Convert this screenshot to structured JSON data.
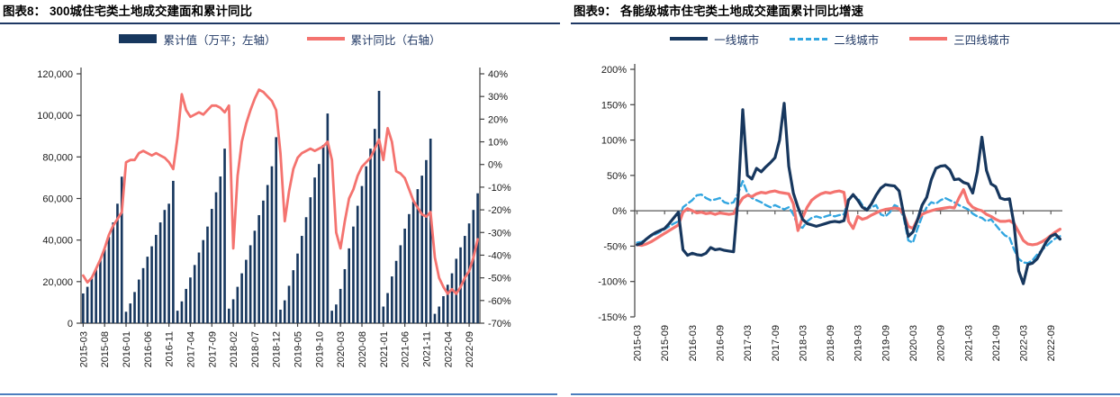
{
  "page": {
    "background": "#FFFFFF"
  },
  "colors": {
    "navy": "#17375E",
    "coral": "#F4736F",
    "skyblue": "#33A6E0",
    "title_rule": "#1F3864",
    "bottom_rule": "#4D7EBE",
    "axis": "#404040",
    "zero_line": "#595959",
    "text": "#1a1a1a"
  },
  "panels": [
    {
      "id": "chart8",
      "header": {
        "prefix": "图表8：",
        "title": "300城住宅类土地成交建面和累计同比"
      },
      "legend": [
        {
          "key": "cumulative-value",
          "label": "累计值（万平；左轴）",
          "marker": "bar",
          "color": "#17375E"
        },
        {
          "key": "cumulative-yoy",
          "label": "累计同比（右轴）",
          "marker": "line",
          "color": "#F4736F"
        }
      ],
      "chart_data": {
        "type": "bar",
        "subtype": "combo-bar-line",
        "frequency": "monthly",
        "x_start": "2015-03",
        "x_end": "2022-11",
        "x_tick_every": 5,
        "x_tick_labels": [
          "2015-03",
          "2015-08",
          "2016-01",
          "2016-06",
          "2016-11",
          "2017-04",
          "2017-09",
          "2018-02",
          "2018-07",
          "2018-12",
          "2019-05",
          "2019-10",
          "2020-03",
          "2020-08",
          "2021-01",
          "2021-06",
          "2021-11",
          "2022-04",
          "2022-09"
        ],
        "left_axis": {
          "min": 0,
          "max": 120000,
          "tick_step": 20000,
          "tick_labels": [
            "120,000",
            "100,000",
            "80,000",
            "60,000",
            "40,000",
            "20,000",
            "0"
          ]
        },
        "right_axis": {
          "min": -70,
          "max": 40,
          "tick_step": 10,
          "tick_labels": [
            "40%",
            "30%",
            "20%",
            "10%",
            "0%",
            "-10%",
            "-20%",
            "-30%",
            "-40%",
            "-50%",
            "-60%",
            "-70%"
          ]
        },
        "grid": false,
        "legend_position": "top",
        "series": [
          {
            "name": "累计值（万平；左轴）",
            "type": "bar",
            "axis": "left",
            "color": "#17375E",
            "values": [
              14300,
              17500,
              21500,
              26000,
              30500,
              35500,
              41500,
              48500,
              57500,
              70500,
              5500,
              9500,
              15000,
              21000,
              26500,
              32000,
              37000,
              42500,
              48500,
              54500,
              57500,
              68500,
              6000,
              10500,
              16500,
              22000,
              28000,
              34000,
              40000,
              46500,
              55000,
              63000,
              70600,
              84000,
              7000,
              11500,
              17500,
              24000,
              30500,
              37500,
              44500,
              52000,
              59000,
              66500,
              75500,
              89500,
              6500,
              11000,
              18000,
              25500,
              33500,
              42000,
              51000,
              60600,
              70100,
              76600,
              85800,
              100900,
              6000,
              9000,
              16500,
              26000,
              36000,
              46500,
              56500,
              66000,
              75500,
              84000,
              93500,
              111800,
              8000,
              14500,
              22500,
              30000,
              37500,
              45500,
              52500,
              58500,
              64500,
              71000,
              78500,
              88800,
              4500,
              8000,
              13000,
              18500,
              24000,
              31000,
              36500,
              42000,
              48000,
              54500,
              62500
            ]
          },
          {
            "name": "累计同比（右轴）",
            "type": "line",
            "axis": "right",
            "color": "#F4736F",
            "values": [
              -49,
              -52,
              -50,
              -46,
              -42,
              -37,
              -31,
              -27,
              -24,
              -21,
              1,
              2,
              2,
              5,
              6,
              5,
              4,
              5,
              4,
              3,
              1,
              -2,
              12,
              31,
              24,
              21,
              22,
              23,
              22,
              24,
              26,
              26,
              25,
              23,
              26,
              -37,
              -5,
              10,
              18,
              24,
              29,
              33,
              32,
              30,
              28,
              24,
              5,
              -25,
              -12,
              -2,
              3,
              5,
              6,
              7,
              6,
              7,
              8,
              10,
              2,
              -30,
              -37,
              -25,
              -15,
              -11,
              -5,
              -1,
              1,
              3,
              7,
              11,
              2,
              16,
              10,
              -3,
              -4,
              -6,
              -11,
              -16,
              -19,
              -22,
              -23,
              -21,
              -41,
              -50,
              -54,
              -57,
              -55,
              -57,
              -54,
              -50,
              -47,
              -41,
              -33
            ]
          }
        ]
      }
    },
    {
      "id": "chart9",
      "header": {
        "prefix": "图表9：",
        "title": "各能级城市住宅类土地成交建面累计同比增速"
      },
      "legend": [
        {
          "key": "tier1",
          "label": "一线城市",
          "marker": "line",
          "color": "#17375E"
        },
        {
          "key": "tier2",
          "label": "二线城市",
          "marker": "dashed-line",
          "color": "#33A6E0"
        },
        {
          "key": "tier34",
          "label": "三四线城市",
          "marker": "line",
          "color": "#F4736F"
        }
      ],
      "chart_data": {
        "type": "line",
        "frequency": "monthly",
        "x_start": "2015-03",
        "x_end": "2022-11",
        "x_tick_every": 6,
        "x_tick_labels": [
          "2015-03",
          "2015-09",
          "2016-03",
          "2016-09",
          "2017-03",
          "2017-09",
          "2018-03",
          "2018-09",
          "2019-03",
          "2019-09",
          "2020-03",
          "2020-09",
          "2021-03",
          "2021-09",
          "2022-03",
          "2022-09"
        ],
        "y_axis": {
          "min": -150,
          "max": 200,
          "tick_step": 50,
          "tick_labels": [
            "200%",
            "150%",
            "100%",
            "50%",
            "0%",
            "-50%",
            "-100%",
            "-150%"
          ]
        },
        "grid": false,
        "zero_line": true,
        "legend_position": "top",
        "series": [
          {
            "name": "一线城市",
            "style": "solid",
            "color": "#17375E",
            "values": [
              -48,
              -46,
              -40,
              -35,
              -31,
              -28,
              -25,
              -18,
              -10,
              -2,
              -55,
              -63,
              -60,
              -62,
              -63,
              -60,
              -52,
              -55,
              -54,
              -56,
              -57,
              -58,
              20,
              143,
              50,
              45,
              60,
              55,
              62,
              68,
              75,
              100,
              152,
              63,
              25,
              5,
              -12,
              -18,
              -20,
              -22,
              -20,
              -18,
              -16,
              -15,
              -16,
              -14,
              15,
              23,
              15,
              5,
              1,
              10,
              22,
              32,
              37,
              36,
              35,
              28,
              -5,
              -36,
              -30,
              -13,
              8,
              19,
              44,
              60,
              63,
              64,
              58,
              44,
              45,
              40,
              38,
              25,
              55,
              104,
              57,
              38,
              34,
              18,
              16,
              17,
              -20,
              -85,
              -103,
              -76,
              -74,
              -68,
              -56,
              -44,
              -36,
              -33,
              -40
            ]
          },
          {
            "name": "二线城市",
            "style": "dashed",
            "color": "#33A6E0",
            "values": [
              -45,
              -44,
              -40,
              -36,
              -33,
              -30,
              -26,
              -22,
              -18,
              -15,
              5,
              10,
              15,
              22,
              23,
              18,
              15,
              16,
              18,
              12,
              10,
              12,
              25,
              42,
              25,
              18,
              15,
              12,
              8,
              5,
              8,
              5,
              2,
              5,
              -5,
              -22,
              -24,
              -15,
              -10,
              -8,
              -10,
              -8,
              -6,
              -8,
              -6,
              -5,
              18,
              21,
              18,
              8,
              2,
              5,
              8,
              -5,
              -8,
              -2,
              8,
              5,
              -10,
              -42,
              -45,
              -25,
              -8,
              5,
              12,
              10,
              15,
              18,
              15,
              12,
              8,
              5,
              2,
              -4,
              -8,
              -10,
              -15,
              -12,
              -20,
              -28,
              -35,
              -38,
              -55,
              -68,
              -73,
              -74,
              -70,
              -62,
              -56,
              -50,
              -44,
              -39,
              -36
            ]
          },
          {
            "name": "三四线城市",
            "style": "solid",
            "color": "#F4736F",
            "values": [
              -48,
              -49,
              -47,
              -44,
              -40,
              -36,
              -32,
              -28,
              -24,
              -20,
              -2,
              3,
              0,
              -3,
              -2,
              -4,
              -3,
              -5,
              -3,
              -4,
              -5,
              -4,
              8,
              18,
              22,
              20,
              24,
              26,
              25,
              27,
              28,
              26,
              25,
              24,
              10,
              -28,
              -10,
              5,
              15,
              20,
              24,
              26,
              25,
              27,
              28,
              26,
              -15,
              -25,
              -8,
              -12,
              -10,
              -6,
              -3,
              0,
              2,
              3,
              4,
              3,
              -5,
              -22,
              -25,
              -12,
              -5,
              -2,
              0,
              2,
              3,
              4,
              5,
              4,
              18,
              30,
              12,
              5,
              2,
              0,
              -5,
              -8,
              -12,
              -15,
              -15,
              -14,
              -18,
              -30,
              -42,
              -47,
              -48,
              -47,
              -44,
              -40,
              -35,
              -30,
              -26
            ]
          }
        ]
      }
    }
  ]
}
